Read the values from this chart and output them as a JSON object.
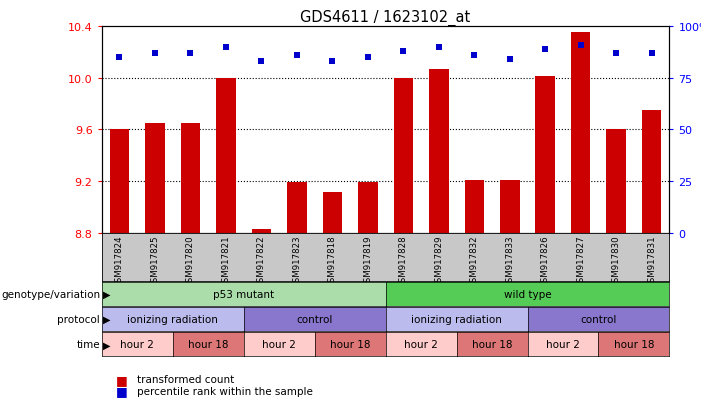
{
  "title": "GDS4611 / 1623102_at",
  "samples": [
    "GSM917824",
    "GSM917825",
    "GSM917820",
    "GSM917821",
    "GSM917822",
    "GSM917823",
    "GSM917818",
    "GSM917819",
    "GSM917828",
    "GSM917829",
    "GSM917832",
    "GSM917833",
    "GSM917826",
    "GSM917827",
    "GSM917830",
    "GSM917831"
  ],
  "bar_values": [
    9.6,
    9.65,
    9.65,
    10.0,
    8.83,
    9.19,
    9.12,
    9.19,
    10.0,
    10.07,
    9.21,
    9.21,
    10.01,
    10.35,
    9.6,
    9.75
  ],
  "dot_values": [
    85,
    87,
    87,
    90,
    83,
    86,
    83,
    85,
    88,
    90,
    86,
    84,
    89,
    91,
    87,
    87
  ],
  "bar_base": 8.8,
  "ylim_left": [
    8.8,
    10.4
  ],
  "ylim_right": [
    0,
    100
  ],
  "yticks_left": [
    8.8,
    9.2,
    9.6,
    10.0,
    10.4
  ],
  "yticks_right": [
    0,
    25,
    50,
    75,
    100
  ],
  "bar_color": "#cc0000",
  "dot_color": "#0000cc",
  "sample_bg_color": "#c8c8c8",
  "genotype_groups": [
    {
      "label": "p53 mutant",
      "start": 0,
      "end": 8,
      "color": "#aaddaa"
    },
    {
      "label": "wild type",
      "start": 8,
      "end": 16,
      "color": "#55cc55"
    }
  ],
  "protocol_groups": [
    {
      "label": "ionizing radiation",
      "start": 0,
      "end": 4,
      "color": "#bbbbee"
    },
    {
      "label": "control",
      "start": 4,
      "end": 8,
      "color": "#8877cc"
    },
    {
      "label": "ionizing radiation",
      "start": 8,
      "end": 12,
      "color": "#bbbbee"
    },
    {
      "label": "control",
      "start": 12,
      "end": 16,
      "color": "#8877cc"
    }
  ],
  "time_groups": [
    {
      "label": "hour 2",
      "start": 0,
      "end": 2,
      "color": "#ffcccc"
    },
    {
      "label": "hour 18",
      "start": 2,
      "end": 4,
      "color": "#dd7777"
    },
    {
      "label": "hour 2",
      "start": 4,
      "end": 6,
      "color": "#ffcccc"
    },
    {
      "label": "hour 18",
      "start": 6,
      "end": 8,
      "color": "#dd7777"
    },
    {
      "label": "hour 2",
      "start": 8,
      "end": 10,
      "color": "#ffcccc"
    },
    {
      "label": "hour 18",
      "start": 10,
      "end": 12,
      "color": "#dd7777"
    },
    {
      "label": "hour 2",
      "start": 12,
      "end": 14,
      "color": "#ffcccc"
    },
    {
      "label": "hour 18",
      "start": 14,
      "end": 16,
      "color": "#dd7777"
    }
  ],
  "row_labels": [
    "genotype/variation",
    "protocol",
    "time"
  ],
  "legend_labels": [
    "transformed count",
    "percentile rank within the sample"
  ]
}
